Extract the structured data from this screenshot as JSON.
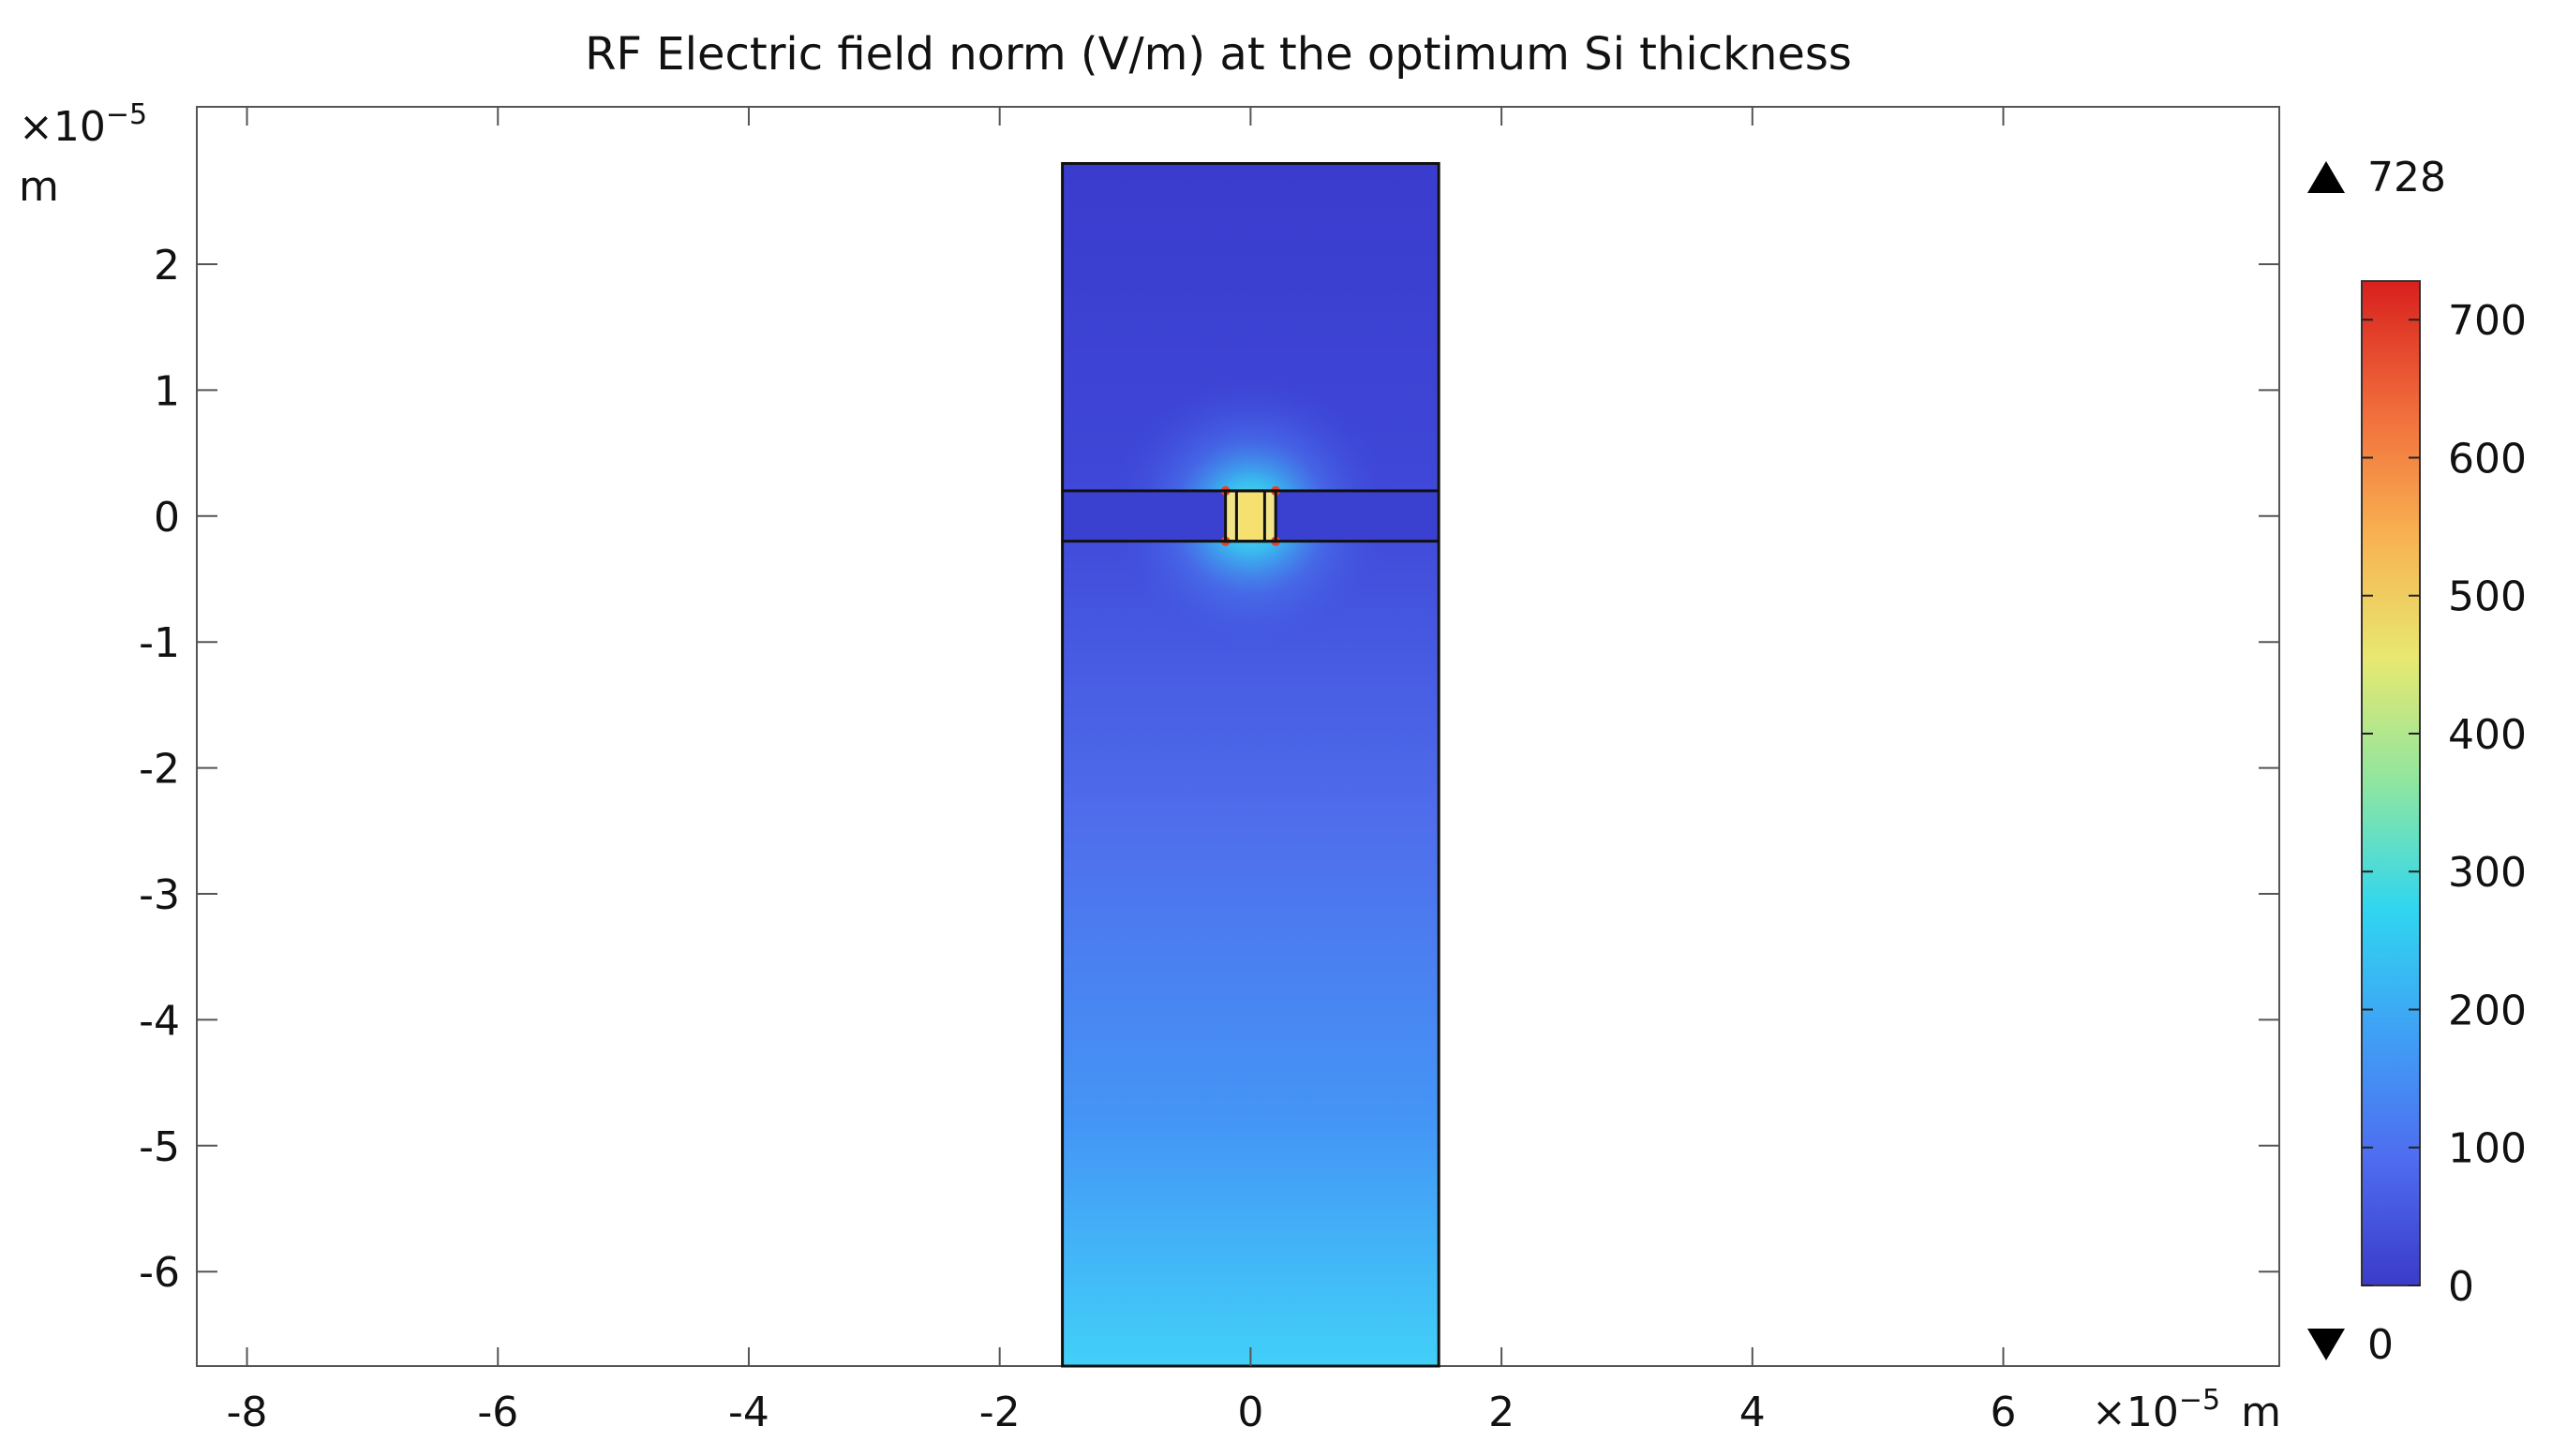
{
  "chart_data": {
    "type": "heatmap",
    "title": "RF Electric field norm (V/m) at the optimum Si thickness",
    "x_axis": {
      "multiplier": "×10",
      "exponent": "−5",
      "unit": "m",
      "range": [
        -8.4,
        8.2
      ],
      "ticks": [
        {
          "v": -8,
          "label": "-8"
        },
        {
          "v": -6,
          "label": "-6"
        },
        {
          "v": -4,
          "label": "-4"
        },
        {
          "v": -2,
          "label": "-2"
        },
        {
          "v": 0,
          "label": "0"
        },
        {
          "v": 2,
          "label": "2"
        },
        {
          "v": 4,
          "label": "4"
        },
        {
          "v": 6,
          "label": "6"
        }
      ]
    },
    "y_axis": {
      "multiplier": "×10",
      "exponent": "−5",
      "unit": "m",
      "range": [
        -6.75,
        3.25
      ],
      "ticks": [
        {
          "v": 2,
          "label": "2"
        },
        {
          "v": 1,
          "label": "1"
        },
        {
          "v": 0,
          "label": "0"
        },
        {
          "v": -1,
          "label": "-1"
        },
        {
          "v": -2,
          "label": "-2"
        },
        {
          "v": -3,
          "label": "-3"
        },
        {
          "v": -4,
          "label": "-4"
        },
        {
          "v": -5,
          "label": "-5"
        },
        {
          "v": -6,
          "label": "-6"
        }
      ]
    },
    "geometry": {
      "outer_domain": {
        "x": [
          -1.5,
          1.5
        ],
        "y": [
          -6.75,
          2.8
        ]
      },
      "si_layer": {
        "y": [
          -0.2,
          0.2
        ]
      },
      "electrode_gap": {
        "x": [
          -0.2,
          0.2
        ],
        "y": [
          -0.2,
          0.2
        ]
      }
    },
    "field_values_vm": {
      "top_of_domain": 20,
      "near_layer": 60,
      "bottom_of_domain": 230,
      "peak_in_gap": 728
    },
    "colorbar": {
      "colormap": "rainbow",
      "min": 0,
      "max": 728,
      "max_label": "728",
      "min_label": "0",
      "ticks": [
        {
          "v": 0,
          "label": "0"
        },
        {
          "v": 100,
          "label": "100"
        },
        {
          "v": 200,
          "label": "200"
        },
        {
          "v": 300,
          "label": "300"
        },
        {
          "v": 400,
          "label": "400"
        },
        {
          "v": 500,
          "label": "500"
        },
        {
          "v": 600,
          "label": "600"
        },
        {
          "v": 700,
          "label": "700"
        }
      ],
      "colors": [
        "#3b3bc9",
        "#4f6cf0",
        "#3fa0f5",
        "#30d6f0",
        "#8ee6a0",
        "#e8e870",
        "#f8b050",
        "#f06a3a",
        "#d8201e"
      ]
    }
  }
}
